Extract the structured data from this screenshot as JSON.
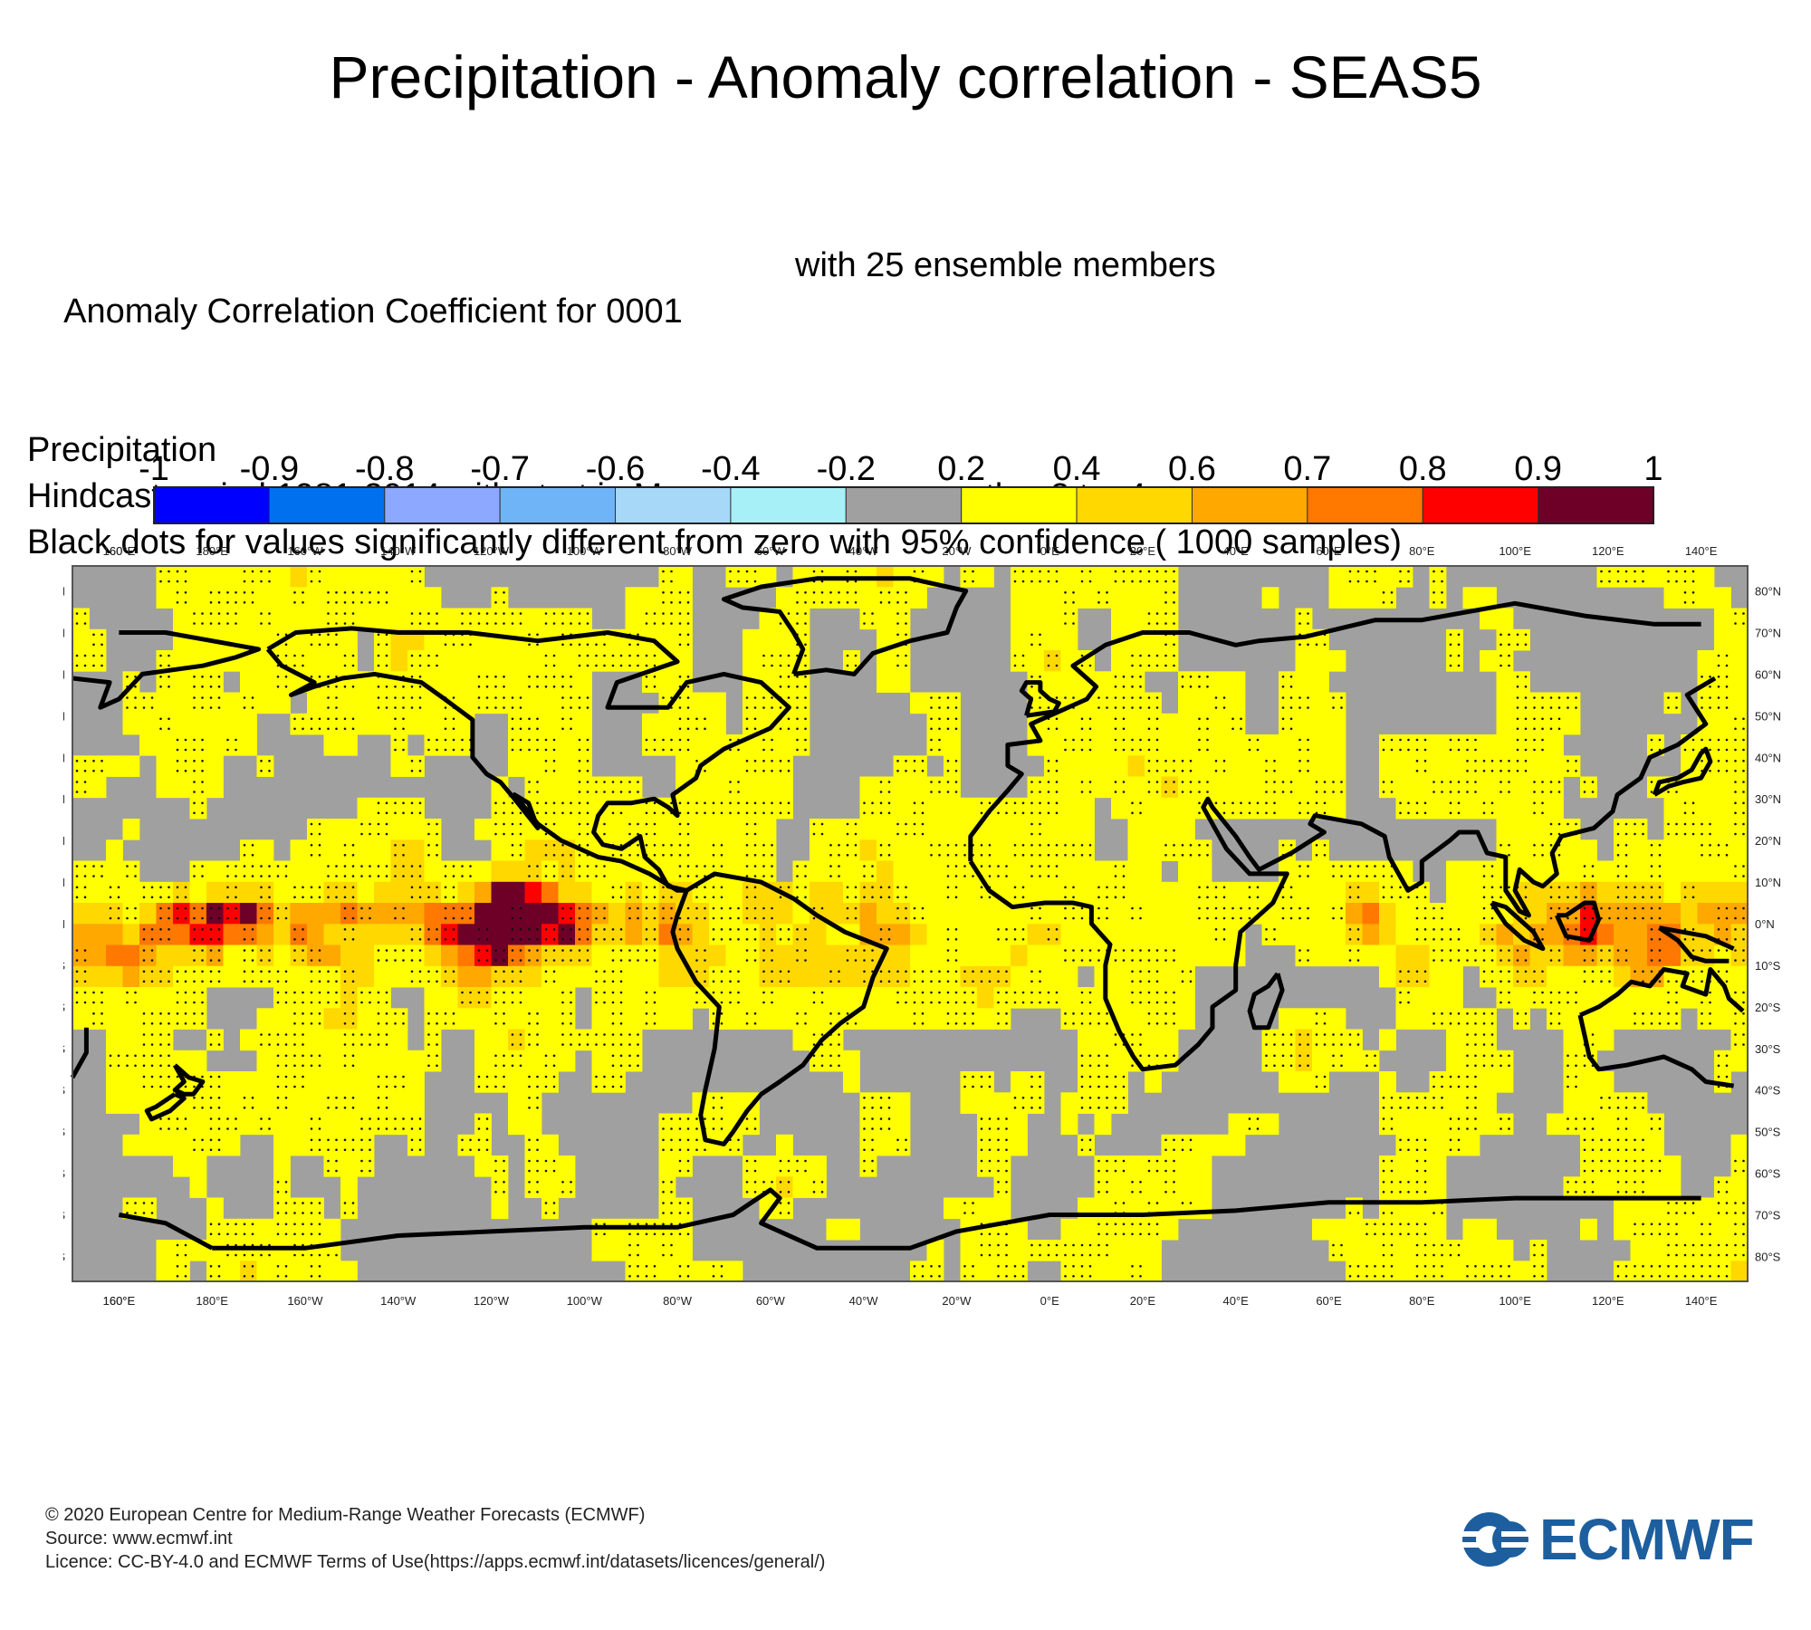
{
  "title": "Precipitation - Anomaly correlation - SEAS5",
  "header": {
    "line1": "Anomaly Correlation Coefficient for 0001",
    "line1_right": "with 25 ensemble members",
    "line2": "Precipitation",
    "line3": "Hindcast period 1981-2014 with start in May average over months  2 to  4",
    "line4": "Black dots for values significantly different from zero with 95% confidence ( 1000 samples)"
  },
  "colorbar": {
    "labels": [
      "-1",
      "-0.9",
      "-0.8",
      "-0.7",
      "-0.6",
      "-0.4",
      "-0.2",
      "0.2",
      "0.4",
      "0.6",
      "0.7",
      "0.8",
      "0.9",
      "1"
    ],
    "colors": [
      "#0000ff",
      "#0070ee",
      "#8ca8ff",
      "#70b4f8",
      "#a8d8f8",
      "#a8f0f8",
      "#a0a0a0",
      "#ffff00",
      "#ffd800",
      "#ffa800",
      "#ff7800",
      "#ff0000",
      "#6e0028"
    ]
  },
  "map": {
    "lon_labels": [
      "160°E",
      "180°E",
      "160°W",
      "140°W",
      "120°W",
      "100°W",
      "80°W",
      "60°W",
      "40°W",
      "20°W",
      "0°E",
      "20°E",
      "40°E",
      "60°E",
      "80°E",
      "100°E",
      "120°E",
      "140°E",
      "160°E"
    ],
    "lat_labels": [
      "80°N",
      "70°N",
      "60°N",
      "50°N",
      "40°N",
      "30°N",
      "20°N",
      "10°N",
      "0°N",
      "10°S",
      "20°S",
      "30°S",
      "40°S",
      "50°S",
      "60°S",
      "70°S",
      "80°S"
    ]
  },
  "footer": {
    "copyright": "© 2020 European Centre for Medium-Range Weather Forecasts (ECMWF)",
    "source": "Source: www.ecmwf.int",
    "licence": "Licence: CC-BY-4.0 and ECMWF Terms of Use(https://apps.ecmwf.int/datasets/licences/general/)"
  },
  "logo": {
    "text": "ECMWF",
    "color": "#1d5e9e"
  }
}
